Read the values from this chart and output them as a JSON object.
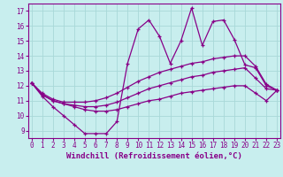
{
  "background_color": "#c8eeee",
  "grid_color": "#a8d8d8",
  "line_color": "#880088",
  "xlabel": "Windchill (Refroidissement éolien,°C)",
  "xlabel_fontsize": 6.5,
  "xticks": [
    0,
    1,
    2,
    3,
    4,
    5,
    6,
    7,
    8,
    9,
    10,
    11,
    12,
    13,
    14,
    15,
    16,
    17,
    18,
    19,
    20,
    21,
    22,
    23
  ],
  "yticks": [
    9,
    10,
    11,
    12,
    13,
    14,
    15,
    16,
    17
  ],
  "xlim": [
    -0.3,
    23.3
  ],
  "ylim": [
    8.5,
    17.5
  ],
  "tick_fontsize": 5.5,
  "series1_x": [
    0,
    1,
    2,
    3,
    4,
    5,
    6,
    7,
    8,
    9,
    10,
    11,
    12,
    13,
    14,
    15,
    16,
    17,
    18,
    19,
    20,
    21,
    22,
    23
  ],
  "series1_y": [
    12.2,
    11.3,
    10.6,
    10.0,
    9.4,
    8.8,
    8.8,
    8.8,
    9.6,
    13.5,
    15.8,
    16.4,
    15.3,
    13.5,
    15.0,
    17.2,
    14.7,
    16.3,
    16.4,
    15.1,
    13.4,
    13.2,
    12.0,
    11.7
  ],
  "series2_x": [
    0,
    1,
    2,
    3,
    4,
    5,
    6,
    7,
    8,
    9,
    10,
    11,
    12,
    13,
    14,
    15,
    16,
    17,
    18,
    19,
    20,
    21,
    22,
    23
  ],
  "series2_y": [
    12.2,
    11.5,
    11.1,
    10.9,
    10.9,
    10.9,
    11.0,
    11.2,
    11.5,
    11.9,
    12.3,
    12.6,
    12.9,
    13.1,
    13.3,
    13.5,
    13.6,
    13.8,
    13.9,
    14.0,
    14.0,
    13.3,
    12.1,
    11.7
  ],
  "series3_x": [
    0,
    1,
    2,
    3,
    4,
    5,
    6,
    7,
    8,
    9,
    10,
    11,
    12,
    13,
    14,
    15,
    16,
    17,
    18,
    19,
    20,
    21,
    22,
    23
  ],
  "series3_y": [
    12.2,
    11.4,
    11.0,
    10.8,
    10.7,
    10.6,
    10.6,
    10.7,
    10.9,
    11.2,
    11.5,
    11.8,
    12.0,
    12.2,
    12.4,
    12.6,
    12.7,
    12.9,
    13.0,
    13.1,
    13.2,
    12.5,
    11.8,
    11.7
  ],
  "series4_x": [
    0,
    1,
    2,
    3,
    4,
    5,
    6,
    7,
    8,
    9,
    10,
    11,
    12,
    13,
    14,
    15,
    16,
    17,
    18,
    19,
    20,
    21,
    22,
    23
  ],
  "series4_y": [
    12.2,
    11.4,
    11.0,
    10.8,
    10.6,
    10.4,
    10.3,
    10.3,
    10.4,
    10.6,
    10.8,
    11.0,
    11.1,
    11.3,
    11.5,
    11.6,
    11.7,
    11.8,
    11.9,
    12.0,
    12.0,
    11.5,
    11.0,
    11.7
  ]
}
